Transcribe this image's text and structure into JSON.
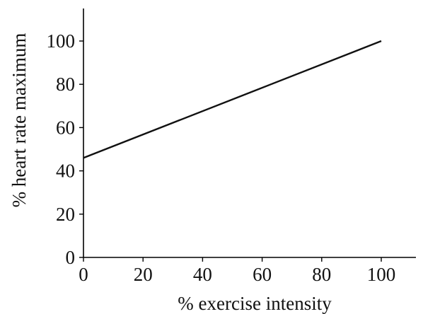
{
  "chart_data": {
    "type": "line",
    "title": "",
    "xlabel": "% exercise intensity",
    "ylabel": "% heart rate maximum",
    "xlim": [
      0,
      113
    ],
    "ylim": [
      0,
      115
    ],
    "x_ticks": [
      0,
      20,
      40,
      60,
      80,
      100
    ],
    "y_ticks": [
      0,
      20,
      40,
      60,
      80,
      100
    ],
    "grid": false,
    "series": [
      {
        "x": [
          0,
          100
        ],
        "y": [
          46,
          100
        ],
        "color": "#111111"
      }
    ]
  }
}
